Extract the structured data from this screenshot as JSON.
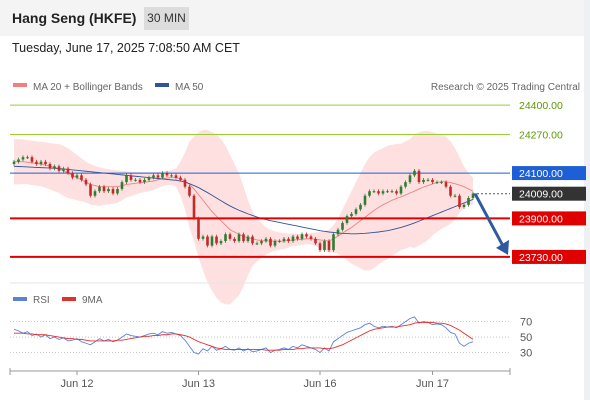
{
  "header": {
    "title": "Hang Seng (HKFE)",
    "timeframe": "30 MIN",
    "datetime": "Tuesday, June 17, 2025 7:08:50 AM CET"
  },
  "legend": {
    "ma20_label": "MA 20 + Bollinger Bands",
    "ma50_label": "MA 50",
    "credit": "Research © 2025 Trading Central",
    "rsi_label": "RSI",
    "rsi_ma_label": "9MA"
  },
  "colors": {
    "up_candle": "#2e7d32",
    "down_candle": "#c62828",
    "bollinger_fill": "#fdd5d5",
    "ma20": "#f08080",
    "ma50": "#2f5597",
    "resistance_green": "#9acd32",
    "support_red": "#e00000",
    "pivot_blue": "#1f5fd6",
    "arrow": "#2f5aa0",
    "rsi": "#5b82d8",
    "rsi_ma": "#e03030"
  },
  "chart_data": {
    "type": "candlestick",
    "instrument": "Hang Seng (HKFE)",
    "timeframe": "30 MIN",
    "x_ticks": [
      "Jun 12",
      "Jun 13",
      "Jun 16",
      "Jun 17"
    ],
    "ylim": [
      23690,
      24440
    ],
    "current_price": 24009,
    "levels": [
      {
        "value": 24400,
        "label": "24400.00",
        "kind": "resistance"
      },
      {
        "value": 24270,
        "label": "24270.00",
        "kind": "resistance"
      },
      {
        "value": 24100,
        "label": "24100.00",
        "kind": "pivot"
      },
      {
        "value": 24009,
        "label": "24009.00",
        "kind": "last"
      },
      {
        "value": 23900,
        "label": "23900.00",
        "kind": "support"
      },
      {
        "value": 23730,
        "label": "23730.00",
        "kind": "support"
      }
    ],
    "forecast_target": 23730,
    "close": [
      24150,
      24160,
      24170,
      24170,
      24150,
      24140,
      24150,
      24140,
      24120,
      24130,
      24110,
      24120,
      24100,
      24080,
      24090,
      24070,
      24050,
      24000,
      24020,
      24040,
      24020,
      24030,
      24010,
      24030,
      24060,
      24090,
      24070,
      24070,
      24060,
      24070,
      24080,
      24090,
      24080,
      24100,
      24090,
      24090,
      24080,
      24070,
      24040,
      24000,
      23900,
      23810,
      23820,
      23780,
      23820,
      23790,
      23800,
      23830,
      23810,
      23800,
      23830,
      23800,
      23820,
      23790,
      23790,
      23800,
      23810,
      23780,
      23800,
      23800,
      23810,
      23800,
      23820,
      23810,
      23830,
      23820,
      23810,
      23790,
      23760,
      23800,
      23760,
      23830,
      23850,
      23880,
      23910,
      23920,
      23940,
      23960,
      24000,
      24020,
      24020,
      24010,
      24020,
      24020,
      24020,
      24010,
      24040,
      24060,
      24090,
      24110,
      24060,
      24070,
      24070,
      24060,
      24060,
      24060,
      24040,
      24000,
      24000,
      23950,
      23960,
      23990,
      24009
    ],
    "ma20": [
      24150,
      24150,
      24150,
      24148,
      24145,
      24142,
      24140,
      24136,
      24130,
      24125,
      24120,
      24110,
      24100,
      24090,
      24080,
      24070,
      24060,
      24050,
      24045,
      24040,
      24040,
      24040,
      24040,
      24040,
      24045,
      24050,
      24052,
      24055,
      24058,
      24060,
      24062,
      24065,
      24070,
      24075,
      24078,
      24080,
      24080,
      24075,
      24065,
      24050,
      24030,
      24005,
      23980,
      23955,
      23930,
      23910,
      23890,
      23870,
      23850,
      23840,
      23830,
      23820,
      23815,
      23810,
      23805,
      23802,
      23800,
      23800,
      23800,
      23800,
      23800,
      23802,
      23805,
      23806,
      23808,
      23810,
      23810,
      23808,
      23805,
      23803,
      23800,
      23810,
      23822,
      23835,
      23848,
      23860,
      23875,
      23890,
      23905,
      23920,
      23935,
      23948,
      23960,
      23970,
      23980,
      23988,
      23995,
      24003,
      24012,
      24020,
      24030,
      24038,
      24045,
      24052,
      24058,
      24062,
      24062,
      24058,
      24053,
      24047,
      24040,
      24030,
      24020
    ],
    "bb_upper": [
      24250,
      24250,
      24248,
      24245,
      24243,
      24240,
      24238,
      24236,
      24232,
      24230,
      24228,
      24220,
      24210,
      24195,
      24180,
      24165,
      24150,
      24140,
      24132,
      24125,
      24120,
      24118,
      24115,
      24112,
      24110,
      24108,
      24106,
      24105,
      24104,
      24104,
      24104,
      24105,
      24106,
      24108,
      24110,
      24112,
      24120,
      24150,
      24190,
      24240,
      24260,
      24280,
      24290,
      24290,
      24280,
      24270,
      24250,
      24220,
      24180,
      24140,
      24100,
      24040,
      23980,
      23930,
      23900,
      23880,
      23860,
      23850,
      23842,
      23838,
      23835,
      23833,
      23832,
      23832,
      23833,
      23834,
      23835,
      23838,
      23840,
      23845,
      23850,
      23870,
      23900,
      23940,
      23980,
      24020,
      24060,
      24100,
      24140,
      24170,
      24190,
      24200,
      24210,
      24220,
      24225,
      24228,
      24230,
      24240,
      24250,
      24270,
      24280,
      24285,
      24285,
      24280,
      24275,
      24270,
      24260,
      24240,
      24210,
      24170,
      24130,
      24100,
      24080
    ],
    "bb_lower": [
      24050,
      24050,
      24052,
      24051,
      24047,
      24044,
      24042,
      24036,
      24028,
      24020,
      24012,
      24000,
      23990,
      23985,
      23980,
      23975,
      23970,
      23960,
      23958,
      23955,
      23960,
      23962,
      23965,
      23968,
      23980,
      23992,
      23998,
      24005,
      24012,
      24016,
      24020,
      24025,
      24034,
      24042,
      24046,
      24048,
      24040,
      24000,
      23940,
      23860,
      23800,
      23730,
      23670,
      23620,
      23580,
      23550,
      23530,
      23520,
      23520,
      23540,
      23560,
      23600,
      23650,
      23690,
      23710,
      23724,
      23740,
      23750,
      23758,
      23762,
      23765,
      23771,
      23778,
      23780,
      23783,
      23786,
      23785,
      23778,
      23770,
      23761,
      23750,
      23750,
      23744,
      23730,
      23716,
      23700,
      23690,
      23680,
      23670,
      23670,
      23680,
      23696,
      23710,
      23720,
      23735,
      23748,
      23760,
      23766,
      23774,
      23770,
      23780,
      23791,
      23805,
      23824,
      23841,
      23854,
      23864,
      23876,
      23896,
      23924,
      23950,
      23960,
      23960
    ],
    "ma50": [
      24130,
      24129,
      24128,
      24127,
      24126,
      24125,
      24124,
      24123,
      24122,
      24121,
      24120,
      24118,
      24116,
      24114,
      24112,
      24110,
      24108,
      24106,
      24104,
      24102,
      24100,
      24098,
      24096,
      24094,
      24092,
      24090,
      24088,
      24086,
      24084,
      24082,
      24080,
      24078,
      24076,
      24074,
      24072,
      24070,
      24068,
      24065,
      24060,
      24053,
      24045,
      24036,
      24025,
      24014,
      24002,
      23990,
      23978,
      23966,
      23955,
      23945,
      23936,
      23928,
      23920,
      23913,
      23906,
      23900,
      23895,
      23890,
      23886,
      23882,
      23878,
      23874,
      23870,
      23866,
      23862,
      23858,
      23854,
      23850,
      23846,
      23843,
      23840,
      23838,
      23836,
      23834,
      23833,
      23832,
      23832,
      23833,
      23834,
      23836,
      23838,
      23840,
      23843,
      23846,
      23850,
      23855,
      23860,
      23866,
      23873,
      23880,
      23888,
      23896,
      23904,
      23912,
      23920,
      23928,
      23936,
      23944,
      23952,
      23960,
      23968,
      23976,
      23984
    ],
    "rsi_axis": {
      "ticks": [
        70,
        50,
        30
      ],
      "ylim": [
        10,
        85
      ]
    },
    "rsi": [
      60,
      58,
      55,
      57,
      52,
      54,
      50,
      53,
      48,
      50,
      47,
      49,
      45,
      46,
      48,
      44,
      42,
      40,
      44,
      48,
      45,
      47,
      44,
      46,
      50,
      54,
      52,
      51,
      50,
      52,
      54,
      55,
      53,
      57,
      55,
      56,
      54,
      52,
      46,
      38,
      30,
      28,
      35,
      32,
      38,
      33,
      35,
      38,
      34,
      33,
      36,
      32,
      35,
      31,
      32,
      34,
      36,
      30,
      33,
      34,
      36,
      34,
      38,
      36,
      40,
      38,
      36,
      34,
      30,
      36,
      32,
      44,
      48,
      52,
      56,
      58,
      60,
      62,
      66,
      68,
      64,
      62,
      64,
      63,
      64,
      62,
      66,
      70,
      74,
      76,
      68,
      70,
      69,
      66,
      67,
      66,
      62,
      56,
      54,
      42,
      38,
      42,
      44
    ],
    "rsi_ma": [
      55,
      55,
      55,
      54,
      54,
      53,
      53,
      53,
      52,
      51,
      50,
      49,
      48,
      48,
      47,
      47,
      46,
      45,
      45,
      45,
      45,
      45,
      45,
      46,
      46,
      47,
      48,
      49,
      50,
      51,
      51,
      52,
      52,
      53,
      53,
      54,
      54,
      53,
      52,
      50,
      47,
      44,
      42,
      40,
      38,
      36,
      35,
      34,
      34,
      34,
      34,
      34,
      34,
      34,
      34,
      34,
      33,
      33,
      33,
      33,
      34,
      34,
      34,
      35,
      35,
      36,
      36,
      36,
      36,
      35,
      35,
      36,
      38,
      40,
      43,
      46,
      49,
      52,
      55,
      58,
      60,
      61,
      62,
      63,
      63,
      63,
      64,
      65,
      66,
      68,
      69,
      69,
      69,
      69,
      68,
      68,
      67,
      65,
      62,
      59,
      55,
      51,
      47
    ]
  }
}
